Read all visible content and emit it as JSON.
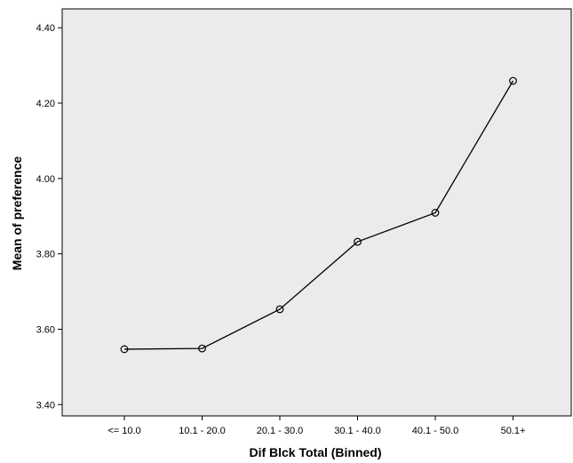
{
  "chart_data": {
    "type": "line",
    "categories": [
      "<= 10.0",
      "10.1 - 20.0",
      "20.1 - 30.0",
      "30.1 - 40.0",
      "40.1 - 50.0",
      "50.1+"
    ],
    "values": [
      3.547,
      3.549,
      3.653,
      3.832,
      3.909,
      4.259
    ],
    "xlabel": "Dif Blck Total (Binned)",
    "ylabel": "Mean of preference",
    "ylim": [
      3.37,
      4.45
    ],
    "yticks": [
      3.4,
      3.6,
      3.8,
      4.0,
      4.2,
      4.4
    ],
    "ytick_labels": [
      "3.40",
      "3.60",
      "3.80",
      "4.00",
      "4.20",
      "4.40"
    ],
    "grid": false,
    "markers": "open-circle",
    "colors": {
      "plot_background": "#ebebeb",
      "line": "#000000",
      "page": "#ffffff"
    }
  }
}
